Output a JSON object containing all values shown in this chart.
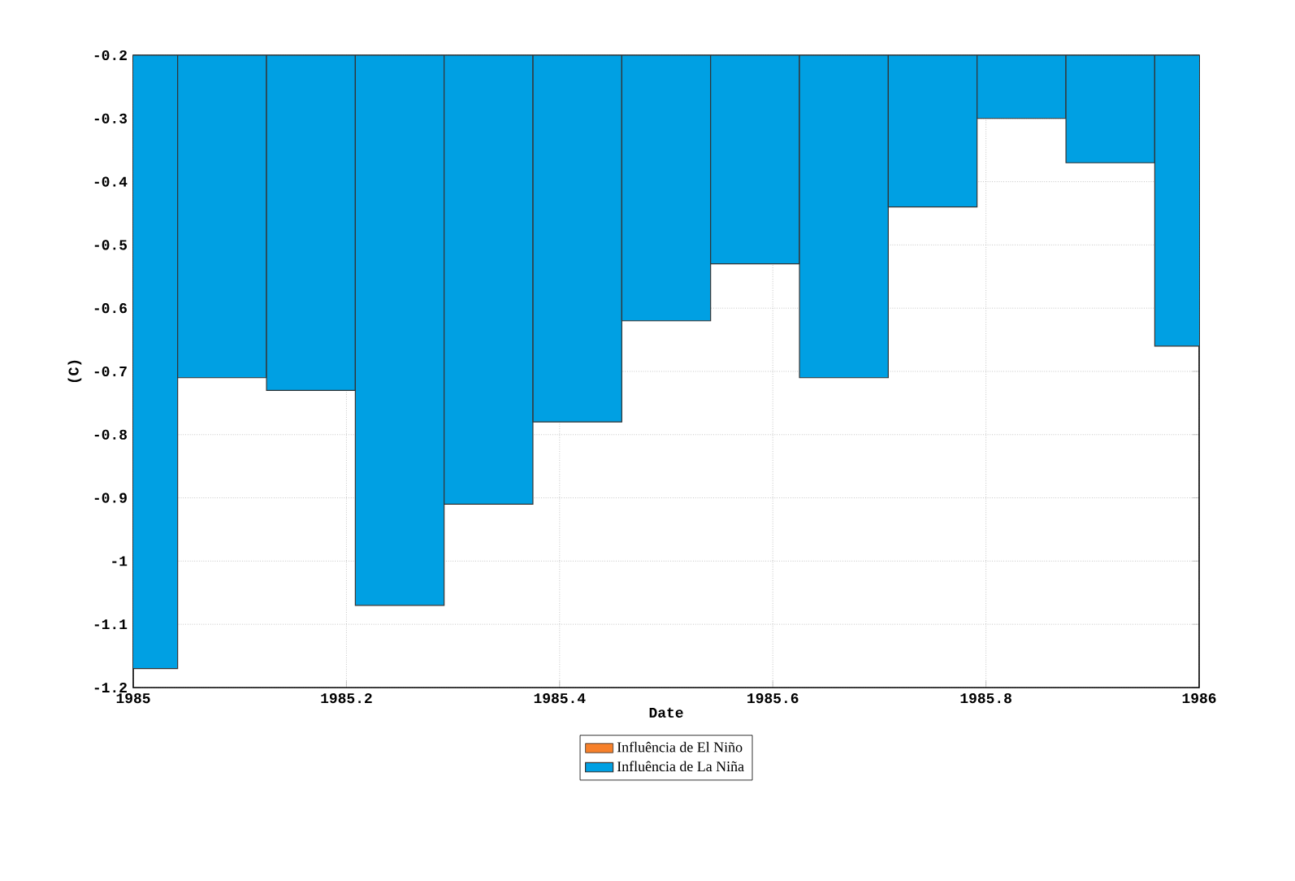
{
  "chart_data": {
    "type": "bar",
    "xlabel": "Date",
    "ylabel": "(C)",
    "x": [
      1985,
      1985.0833,
      1985.1667,
      1985.25,
      1985.3333,
      1985.4167,
      1985.5,
      1985.5833,
      1985.6667,
      1985.75,
      1985.8333,
      1985.9167,
      1986
    ],
    "series": [
      {
        "name": "Influência de El Niño",
        "color": "#f7802a",
        "values": [
          null,
          null,
          null,
          null,
          null,
          null,
          null,
          null,
          null,
          null,
          null,
          null,
          null
        ]
      },
      {
        "name": "Influência de La Niña",
        "color": "#00a0e3",
        "values": [
          -1.17,
          -0.71,
          -0.73,
          -1.07,
          -0.91,
          -0.78,
          -0.62,
          -0.53,
          -0.71,
          -0.44,
          -0.3,
          -0.37,
          -0.66
        ]
      }
    ],
    "xlim": [
      1985,
      1986
    ],
    "ylim": [
      -1.2,
      -0.2
    ],
    "xticks": [
      1985,
      1985.2,
      1985.4,
      1985.6,
      1985.8,
      1986
    ],
    "yticks": [
      -1.2,
      -1.1,
      -1,
      -0.9,
      -0.8,
      -0.7,
      -0.6,
      -0.5,
      -0.4,
      -0.3,
      -0.2
    ],
    "grid": true,
    "legend": "bottom"
  }
}
